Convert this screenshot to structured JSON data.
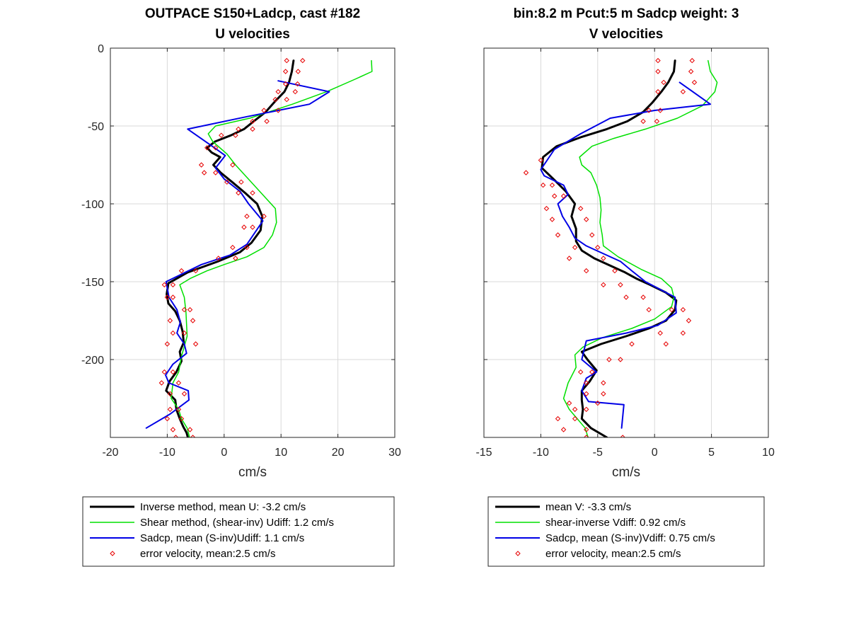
{
  "chart_data": [
    {
      "type": "line",
      "title": "OUTPACE S150+Ladcp, cast #182",
      "subtitle": "U velocities",
      "xlabel": "cm/s",
      "ylabel": "",
      "xlim": [
        -20,
        30
      ],
      "ylim": [
        -250,
        0
      ],
      "xticks": [
        -20,
        -10,
        0,
        10,
        20,
        30
      ],
      "yticks": [
        0,
        -50,
        -100,
        -150,
        -200
      ],
      "xtick_labels": [
        "-20",
        "-10",
        "0",
        "10",
        "20",
        "30"
      ],
      "ytick_labels": [
        "0",
        "-50",
        "-100",
        "-150",
        "-200"
      ],
      "grid": true,
      "legend_placement": "below",
      "series": [
        {
          "name": "Inverse method, mean U:  -3.2 cm/s",
          "color": "#000000",
          "kind": "line",
          "width": 3,
          "x": [
            12.2,
            11.9,
            11.4,
            10.6,
            9.0,
            7.3,
            5.2,
            3.5,
            1.2,
            -1.6,
            -3.0,
            -2.2,
            -0.7,
            -1.9,
            -0.6,
            1.4,
            3.7,
            5.8,
            6.7,
            6.4,
            4.8,
            2.8,
            -1.1,
            -6.4,
            -9.8,
            -10.1,
            -9.8,
            -8.6,
            -7.8,
            -7.3,
            -7.1,
            -7.8,
            -7.5,
            -8.4,
            -9.6,
            -10.2,
            -8.6,
            -8.4,
            -7.8,
            -7.2,
            -6.6,
            -6.3
          ],
          "y": [
            -8,
            -15,
            -22,
            -28,
            -34,
            -41,
            -47,
            -52,
            -56,
            -60,
            -64,
            -67,
            -70,
            -75,
            -80,
            -86,
            -93,
            -100,
            -108,
            -117,
            -125,
            -131,
            -137,
            -144,
            -151,
            -158,
            -164,
            -169,
            -175,
            -182,
            -189,
            -195,
            -201,
            -208,
            -214,
            -220,
            -226,
            -232,
            -238,
            -243,
            -247,
            -251
          ]
        },
        {
          "name": "Shear method, (shear-inv)  Udiff:  1.2 cm/s",
          "color": "#00e000",
          "kind": "line",
          "width": 1.5,
          "x": [
            25.9,
            26.0,
            23.0,
            18.0,
            12.0,
            4.5,
            -1.5,
            -2.8,
            -2.0,
            0.5,
            2.0,
            4.5,
            7.0,
            9.0,
            9.2,
            8.5,
            7.0,
            4.0,
            0.0,
            -3.0,
            -6.0,
            -7.8,
            -7.0,
            -6.7,
            -6.5,
            -7.5,
            -8.0,
            -9.0,
            -9.3,
            -8.0,
            -7.5,
            -6.5,
            -6.0
          ],
          "y": [
            -8,
            -15,
            -20,
            -28,
            -36,
            -45,
            -50,
            -55,
            -60,
            -68,
            -75,
            -85,
            -95,
            -103,
            -112,
            -120,
            -128,
            -134,
            -139,
            -143,
            -148,
            -152,
            -160,
            -170,
            -185,
            -198,
            -208,
            -215,
            -225,
            -232,
            -238,
            -244,
            -251
          ]
        },
        {
          "name": "Sadcp, mean (S-inv)Udiff: 1.1 cm/s",
          "color": "#0000e6",
          "kind": "line",
          "width": 2,
          "x": [
            9.5,
            18.5,
            15.0,
            4.0,
            -6.4,
            -1.7,
            0.2,
            -1.5,
            0.0,
            2.8,
            4.3,
            6.8,
            5.5,
            4.0,
            1.0,
            -4.0,
            -10.2,
            -9.7,
            -8.3,
            -7.7,
            -8.3,
            -7.0,
            -6.6,
            -9.0,
            -10.3,
            -9.7,
            -6.3,
            -6.2,
            -9.5,
            -13.7
          ],
          "y": [
            -21,
            -28,
            -36,
            -44,
            -52,
            -64,
            -69,
            -77,
            -84,
            -92,
            -100,
            -111,
            -118,
            -126,
            -133,
            -139,
            -150,
            -160,
            -168,
            -176,
            -183,
            -190,
            -196,
            -203,
            -210,
            -215,
            -220,
            -226,
            -235,
            -244
          ]
        },
        {
          "name": "error velocity, mean:2.5 cm/s",
          "color": "#e60000",
          "kind": "scatter",
          "x": [
            11.0,
            13.8,
            10.8,
            13.0,
            10.8,
            12.9,
            9.5,
            12.5,
            9.0,
            11.0,
            7.0,
            9.5,
            5.0,
            7.5,
            2.5,
            5.0,
            -0.5,
            2.0,
            -3.0,
            -1.5,
            -4.0,
            1.5,
            -3.5,
            -1.5,
            0.5,
            3.0,
            2.5,
            5.0,
            4.0,
            7.0,
            3.5,
            5.0,
            1.5,
            4.0,
            -1.0,
            2.0,
            -5.0,
            -7.5,
            -9.0,
            -10.5,
            -9.0,
            -10.0,
            -7.0,
            -6.0,
            -9.5,
            -5.5,
            -9.0,
            -7.0,
            -10.0,
            -5.0,
            -10.5,
            -9.0,
            -11.0,
            -8.0,
            -9.5,
            -7.0,
            -9.5,
            -8.0,
            -10.0,
            -7.5,
            -9.0,
            -6.0,
            -8.5,
            -5.5
          ],
          "y": [
            -8,
            -8,
            -15,
            -15,
            -23,
            -23,
            -28,
            -28,
            -33,
            -33,
            -40,
            -40,
            -47,
            -47,
            -52,
            -52,
            -56,
            -56,
            -64,
            -64,
            -75,
            -75,
            -80,
            -80,
            -86,
            -86,
            -93,
            -93,
            -108,
            -108,
            -115,
            -115,
            -128,
            -128,
            -135,
            -135,
            -143,
            -143,
            -152,
            -152,
            -160,
            -160,
            -168,
            -168,
            -175,
            -175,
            -183,
            -183,
            -190,
            -190,
            -208,
            -208,
            -215,
            -215,
            -222,
            -222,
            -232,
            -232,
            -238,
            -238,
            -245,
            -245,
            -250,
            -250
          ]
        }
      ]
    },
    {
      "type": "line",
      "title": "bin:8.2 m  Pcut:5 m  Sadcp weight: 3",
      "subtitle": "V velocities",
      "xlabel": "cm/s",
      "ylabel": "",
      "xlim": [
        -15,
        10
      ],
      "ylim": [
        -250,
        0
      ],
      "xticks": [
        -15,
        -10,
        -5,
        0,
        5,
        10
      ],
      "yticks": [
        0,
        -50,
        -100,
        -150,
        -200
      ],
      "xtick_labels": [
        "-15",
        "-10",
        "-5",
        "0",
        "5",
        "10"
      ],
      "ytick_labels": [],
      "grid": true,
      "legend_placement": "below",
      "series": [
        {
          "name": "mean V:  -3.3 cm/s",
          "color": "#000000",
          "kind": "line",
          "width": 3,
          "x": [
            1.8,
            1.7,
            1.2,
            0.6,
            -0.2,
            -1.0,
            -2.4,
            -4.2,
            -6.4,
            -8.6,
            -9.8,
            -9.9,
            -8.9,
            -7.8,
            -7.0,
            -7.3,
            -6.9,
            -6.9,
            -6.4,
            -5.3,
            -3.8,
            -2.6,
            -1.6,
            -0.4,
            1.0,
            1.9,
            1.8,
            1.0,
            -0.5,
            -2.5,
            -4.7,
            -6.4,
            -5.9,
            -5.1,
            -5.7,
            -6.4,
            -6.4,
            -6.3,
            -6.4,
            -5.6,
            -4.2
          ],
          "y": [
            -8,
            -15,
            -22,
            -28,
            -35,
            -41,
            -47,
            -52,
            -57,
            -63,
            -70,
            -77,
            -84,
            -92,
            -100,
            -108,
            -116,
            -124,
            -130,
            -135,
            -140,
            -144,
            -148,
            -152,
            -157,
            -162,
            -168,
            -175,
            -180,
            -185,
            -190,
            -195,
            -200,
            -207,
            -214,
            -220,
            -226,
            -232,
            -238,
            -244,
            -250
          ]
        },
        {
          "name": "shear-inverse Vdiff:  0.92 cm/s",
          "color": "#00e000",
          "kind": "line",
          "width": 1.5,
          "x": [
            4.7,
            4.9,
            5.5,
            5.3,
            4.2,
            2.0,
            -0.8,
            -3.6,
            -5.5,
            -6.6,
            -6.4,
            -5.6,
            -5.1,
            -4.8,
            -4.7,
            -4.8,
            -4.6,
            -4.5,
            -3.2,
            -1.2,
            0.6,
            1.5,
            1.7,
            1.5,
            0.0,
            -2.0,
            -4.6,
            -6.3,
            -7.0,
            -6.9,
            -7.6,
            -8.0,
            -7.5,
            -6.8,
            -6.1,
            -5.8
          ],
          "y": [
            -8,
            -15,
            -22,
            -28,
            -37,
            -45,
            -52,
            -58,
            -63,
            -70,
            -75,
            -80,
            -88,
            -96,
            -104,
            -112,
            -120,
            -127,
            -134,
            -142,
            -148,
            -154,
            -160,
            -166,
            -174,
            -180,
            -186,
            -192,
            -197,
            -205,
            -215,
            -225,
            -232,
            -238,
            -244,
            -251
          ]
        },
        {
          "name": "Sadcp, mean (S-inv)Vdiff: 0.75 cm/s",
          "color": "#0000e6",
          "kind": "line",
          "width": 2,
          "x": [
            2.2,
            4.9,
            0.0,
            -3.9,
            -6.5,
            -8.8,
            -10.0,
            -9.7,
            -8.0,
            -7.6,
            -8.5,
            -8.1,
            -7.5,
            -7.0,
            -6.0,
            -4.5,
            -3.0,
            -2.0,
            -0.8,
            0.5,
            1.8,
            1.9,
            0.3,
            -2.5,
            -6.0,
            -6.4,
            -5.1,
            -6.0,
            -6.4,
            -5.8,
            -2.7,
            -2.9
          ],
          "y": [
            -22,
            -36,
            -40,
            -45,
            -55,
            -65,
            -78,
            -82,
            -88,
            -94,
            -100,
            -108,
            -115,
            -122,
            -127,
            -132,
            -137,
            -143,
            -150,
            -155,
            -160,
            -170,
            -178,
            -183,
            -188,
            -200,
            -208,
            -212,
            -220,
            -227,
            -229,
            -244
          ]
        },
        {
          "name": "error velocity, mean:2.5 cm/s",
          "color": "#e60000",
          "kind": "scatter",
          "x": [
            0.3,
            3.3,
            0.3,
            3.2,
            0.8,
            3.5,
            0.3,
            2.5,
            -0.5,
            0.5,
            -1.0,
            0.2,
            -10.0,
            -11.3,
            -9.8,
            -9.0,
            -8.8,
            -8.0,
            -9.5,
            -6.5,
            -9.0,
            -6.0,
            -8.5,
            -5.5,
            -7.0,
            -5.0,
            -7.5,
            -4.5,
            -6.0,
            -3.5,
            -4.5,
            -3.0,
            -2.5,
            -1.0,
            -0.5,
            1.5,
            2.5,
            3.0,
            0.5,
            2.5,
            -2.0,
            1.0,
            -4.0,
            -3.0,
            -6.5,
            -5.5,
            -6.0,
            -4.5,
            -6.0,
            -4.5,
            -7.5,
            -5.0,
            -7.0,
            -6.0,
            -8.5,
            -7.0,
            -8.0,
            -6.0,
            -6.0,
            -2.8
          ],
          "y": [
            -8,
            -8,
            -15,
            -15,
            -22,
            -22,
            -28,
            -28,
            -40,
            -40,
            -47,
            -47,
            -72,
            -80,
            -88,
            -88,
            -95,
            -95,
            -103,
            -103,
            -110,
            -110,
            -120,
            -120,
            -128,
            -128,
            -135,
            -135,
            -143,
            -143,
            -152,
            -152,
            -160,
            -160,
            -168,
            -168,
            -168,
            -175,
            -183,
            -183,
            -190,
            -190,
            -200,
            -200,
            -208,
            -208,
            -215,
            -215,
            -222,
            -222,
            -228,
            -228,
            -232,
            -232,
            -238,
            -238,
            -245,
            -245,
            -250,
            -250
          ]
        }
      ]
    }
  ]
}
